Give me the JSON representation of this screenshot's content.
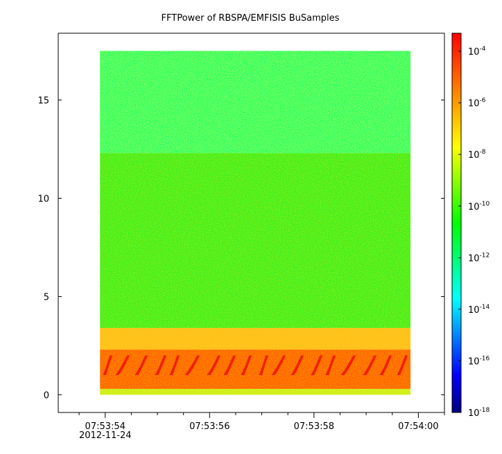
{
  "chart_data": {
    "type": "heatmap",
    "title": "FFTPower of RBSPA/EMFISIS  BuSamples",
    "xlabel": "",
    "ylabel": "",
    "x_ticks": [
      {
        "label": "07:53:54",
        "sub": "2012-11-24",
        "value": 0
      },
      {
        "label": "07:53:56",
        "sub": "",
        "value": 2
      },
      {
        "label": "07:53:58",
        "sub": "",
        "value": 4
      },
      {
        "label": "07:54:00",
        "sub": "",
        "value": 6
      }
    ],
    "x_minor_step": 0.5,
    "xlim": [
      -0.9,
      6.5
    ],
    "data_xrange": [
      -0.1,
      5.85
    ],
    "y_ticks": [
      0,
      5,
      10,
      15
    ],
    "ylim": [
      -0.9,
      18.4
    ],
    "data_yrange": [
      0,
      17.5
    ],
    "colorbar": {
      "scale": "log",
      "range_exp": [
        -18,
        -3.3
      ],
      "ticks": [
        {
          "base": "10",
          "exp": "-4"
        },
        {
          "base": "10",
          "exp": "-6"
        },
        {
          "base": "10",
          "exp": "-8"
        },
        {
          "base": "10",
          "exp": "-10"
        },
        {
          "base": "10",
          "exp": "-12"
        },
        {
          "base": "10",
          "exp": "-14"
        },
        {
          "base": "10",
          "exp": "-16"
        },
        {
          "base": "10",
          "exp": "-18"
        }
      ],
      "colormap": [
        "#00007f",
        "#0000ff",
        "#007fff",
        "#00ffff",
        "#00ff7f",
        "#00ff00",
        "#7fff00",
        "#ffff00",
        "#ffaa00",
        "#ff5500",
        "#ff0000"
      ]
    },
    "bands": [
      {
        "y": [
          12.3,
          17.5
        ],
        "log_power": -12.6,
        "color": "#00ff66"
      },
      {
        "y": [
          3.4,
          12.3
        ],
        "log_power": -10.5,
        "color": "#22ee22"
      },
      {
        "y": [
          2.3,
          3.4
        ],
        "log_power": -7.5,
        "color": "#ffbb22"
      },
      {
        "y": [
          0.3,
          2.3
        ],
        "log_power": -6.0,
        "color": "#ff5511"
      },
      {
        "y": [
          0.0,
          0.3
        ],
        "log_power": -9.0,
        "color": "#ccee22"
      }
    ]
  }
}
